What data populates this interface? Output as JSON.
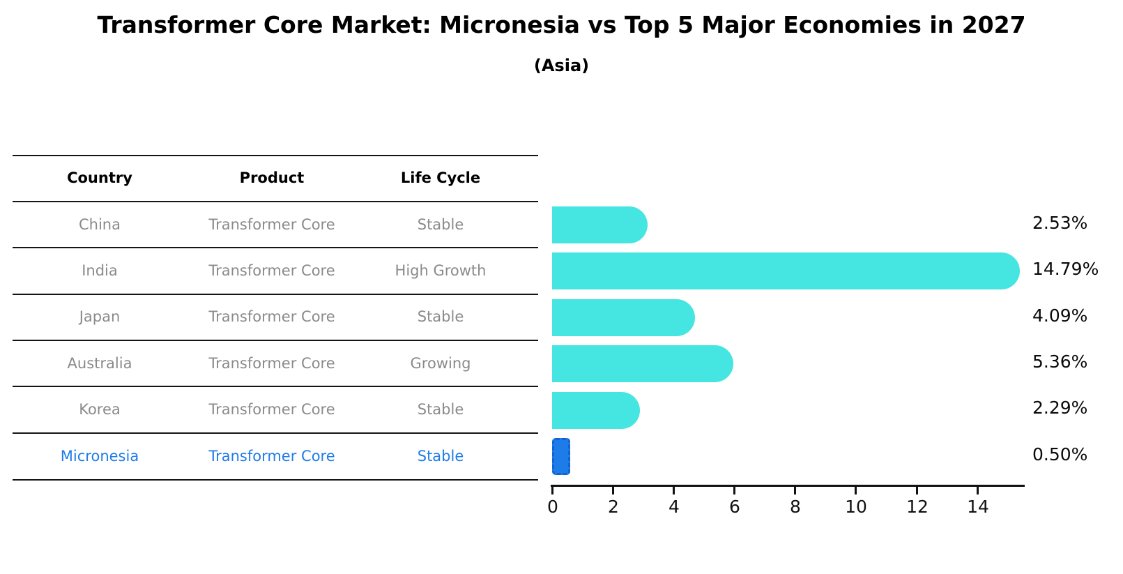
{
  "title": "Transformer Core Market: Micronesia vs Top 5 Major Economies in 2027",
  "subtitle": "(Asia)",
  "table": {
    "headers": {
      "country": "Country",
      "product": "Product",
      "life_cycle": "Life Cycle"
    },
    "rows": [
      {
        "country": "China",
        "product": "Transformer Core",
        "life_cycle": "Stable"
      },
      {
        "country": "India",
        "product": "Transformer Core",
        "life_cycle": "High Growth"
      },
      {
        "country": "Japan",
        "product": "Transformer Core",
        "life_cycle": "Stable"
      },
      {
        "country": "Australia",
        "product": "Transformer Core",
        "life_cycle": "Growing"
      },
      {
        "country": "Korea",
        "product": "Transformer Core",
        "life_cycle": "Stable"
      },
      {
        "country": "Micronesia",
        "product": "Transformer Core",
        "life_cycle": "Stable"
      }
    ]
  },
  "chart_data": {
    "type": "bar",
    "orientation": "horizontal",
    "categories": [
      "China",
      "India",
      "Japan",
      "Australia",
      "Korea",
      "Micronesia"
    ],
    "values": [
      2.53,
      14.79,
      4.09,
      5.36,
      2.29,
      0.5
    ],
    "value_labels": [
      "2.53%",
      "14.79%",
      "4.09%",
      "5.36%",
      "2.29%",
      "0.50%"
    ],
    "x_ticks": [
      "0",
      "2",
      "4",
      "6",
      "8",
      "10",
      "12",
      "14"
    ],
    "xlim": [
      0,
      15.5
    ],
    "grid": false,
    "bar_color": "#45E5E2",
    "highlight_color": "#1E7CE8",
    "highlight_index": 5,
    "title": "Transformer Core Market: Micronesia vs Top 5 Major Economies in 2027",
    "xlabel": "",
    "ylabel": ""
  },
  "colors": {
    "text": "#000000",
    "muted_text": "#8a8a8a",
    "bar": "#45E5E2",
    "highlight": "#1E7CE8",
    "axis": "#111111"
  }
}
